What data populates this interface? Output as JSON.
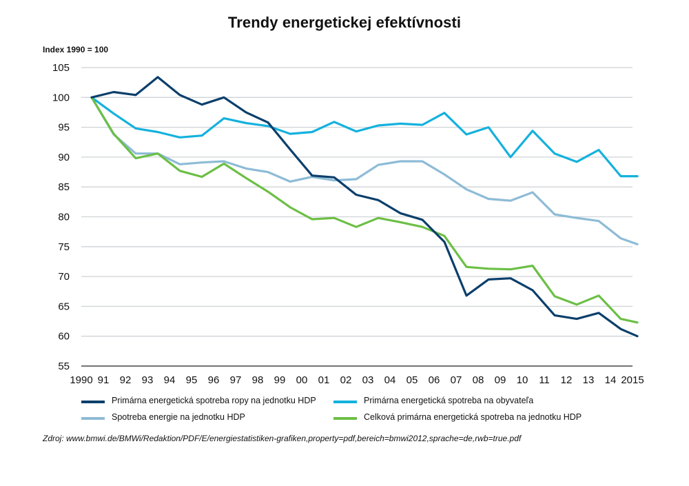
{
  "chart_data": {
    "type": "line",
    "title": "Trendy energetickej efektívnosti",
    "ylabel": "Index 1990 = 100",
    "ylim": [
      55,
      105
    ],
    "yticks": [
      "105",
      "100",
      "95",
      "90",
      "85",
      "80",
      "75",
      "70",
      "65",
      "60",
      "55"
    ],
    "x_tick_labels": [
      "1990",
      "91",
      "92",
      "93",
      "94",
      "95",
      "96",
      "97",
      "98",
      "99",
      "00",
      "01",
      "02",
      "03",
      "04",
      "05",
      "06",
      "07",
      "08",
      "09",
      "10",
      "11",
      "12",
      "13",
      "14",
      "2015"
    ],
    "x": [
      1990,
      1991,
      1992,
      1993,
      1994,
      1995,
      1996,
      1997,
      1998,
      1999,
      2000,
      2001,
      2002,
      2003,
      2004,
      2005,
      2006,
      2007,
      2008,
      2009,
      2010,
      2011,
      2012,
      2013,
      2014,
      2014.75
    ],
    "grid": "horizontal",
    "legend_position": "bottom",
    "series": [
      {
        "name": "Primárna energetická spotreba ropy na jednotku HDP",
        "color": "#0b3f6b",
        "values": [
          100,
          100.9,
          100.4,
          103.4,
          100.4,
          98.8,
          100.0,
          97.5,
          95.8,
          91.3,
          86.9,
          86.6,
          83.7,
          82.8,
          80.6,
          79.5,
          75.8,
          66.8,
          69.5,
          69.7,
          67.7,
          63.5,
          62.9,
          63.9,
          61.2,
          60.0
        ]
      },
      {
        "name": "Primárna energetická spotreba na obyvateľa",
        "color": "#14b1dd",
        "values": [
          100,
          97.3,
          94.8,
          94.2,
          93.3,
          93.6,
          96.5,
          95.7,
          95.2,
          93.9,
          94.2,
          95.9,
          94.3,
          95.3,
          95.6,
          95.4,
          97.4,
          93.8,
          95.0,
          90.0,
          94.4,
          90.6,
          89.2,
          91.2,
          86.8,
          86.8
        ]
      },
      {
        "name": "Spotreba energie na jednotku HDP",
        "color": "#8dbbd6",
        "values": [
          100,
          93.8,
          90.6,
          90.6,
          88.8,
          89.1,
          89.3,
          88.1,
          87.5,
          85.9,
          86.7,
          86.1,
          86.3,
          88.7,
          89.3,
          89.3,
          87.1,
          84.6,
          83.0,
          82.7,
          84.1,
          80.4,
          79.8,
          79.3,
          76.4,
          75.4
        ]
      },
      {
        "name": "Celková primárna energetická spotreba na jednotku HDP",
        "color": "#6cbf45",
        "values": [
          100,
          93.9,
          89.8,
          90.6,
          87.7,
          86.7,
          88.9,
          86.5,
          84.2,
          81.6,
          79.6,
          79.8,
          78.3,
          79.8,
          79.1,
          78.3,
          76.8,
          71.6,
          71.3,
          71.2,
          71.8,
          66.7,
          65.3,
          66.8,
          62.9,
          62.3
        ]
      }
    ],
    "legend_order": [
      0,
      1,
      2,
      3
    ]
  },
  "source": "Zdroj: www.bmwi.de/BMWi/Redaktion/PDF/E/energiestatistiken-grafiken,property=pdf,bereich=bmwi2012,sprache=de,rwb=true.pdf"
}
